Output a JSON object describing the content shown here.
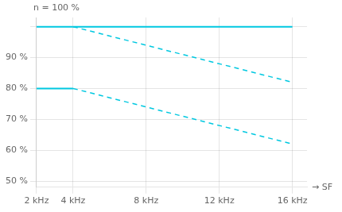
{
  "chart_data": {
    "type": "line",
    "xlabel": "→ SF",
    "ylabel": "n = 100 %",
    "color": "#00c8e0",
    "grid": true,
    "xlim": [
      2,
      16.8
    ],
    "xticks": [
      {
        "value": 2,
        "label": "2 kHz"
      },
      {
        "value": 4,
        "label": "4 kHz"
      },
      {
        "value": 8,
        "label": "8 kHz"
      },
      {
        "value": 12,
        "label": "12 kHz"
      },
      {
        "value": 16,
        "label": "16 kHz"
      }
    ],
    "ylim": [
      48,
      103
    ],
    "yticks": [
      {
        "value": 50,
        "label": "50 %"
      },
      {
        "value": 60,
        "label": "60 %"
      },
      {
        "value": 70,
        "label": "70 %"
      },
      {
        "value": 80,
        "label": "80 %"
      },
      {
        "value": 90,
        "label": "90 %"
      },
      {
        "value": 100,
        "label": ""
      }
    ],
    "series": [
      {
        "x": [
          2,
          4
        ],
        "values": [
          100,
          100
        ],
        "line_style": "solid"
      },
      {
        "x": [
          4,
          16
        ],
        "values": [
          100,
          100
        ],
        "line_style": "solid"
      },
      {
        "x": [
          4,
          16
        ],
        "values": [
          100,
          82
        ],
        "line_style": "dashed"
      },
      {
        "x": [
          2,
          4
        ],
        "values": [
          80,
          80
        ],
        "line_style": "solid"
      },
      {
        "x": [
          4,
          16
        ],
        "values": [
          80,
          62
        ],
        "line_style": "dashed"
      }
    ]
  }
}
